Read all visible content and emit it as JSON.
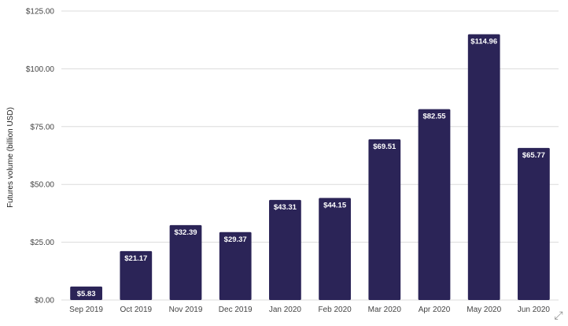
{
  "chart_data": {
    "type": "bar",
    "categories": [
      "Sep 2019",
      "Oct 2019",
      "Nov 2019",
      "Dec 2019",
      "Jan 2020",
      "Feb 2020",
      "Mar 2020",
      "Apr 2020",
      "May 2020",
      "Jun 2020"
    ],
    "values": [
      5.83,
      21.17,
      32.39,
      29.37,
      43.31,
      44.15,
      69.51,
      82.55,
      114.96,
      65.77
    ],
    "data_labels": [
      "$5.83",
      "$21.17",
      "$32.39",
      "$29.37",
      "$43.31",
      "$44.15",
      "$69.51",
      "$82.55",
      "$114.96",
      "$65.77"
    ],
    "ylabel": "Futures volume (billion USD)",
    "xlabel": "",
    "yticks": [
      0,
      25,
      50,
      75,
      100,
      125
    ],
    "ytick_labels": [
      "$0.00",
      "$25.00",
      "$50.00",
      "$75.00",
      "$100.00",
      "$125.00"
    ],
    "ylim": [
      0,
      125
    ],
    "grid": true,
    "legend": false,
    "bar_color": "#2b2457"
  },
  "controls": {
    "expand_icon": "expand-icon"
  }
}
